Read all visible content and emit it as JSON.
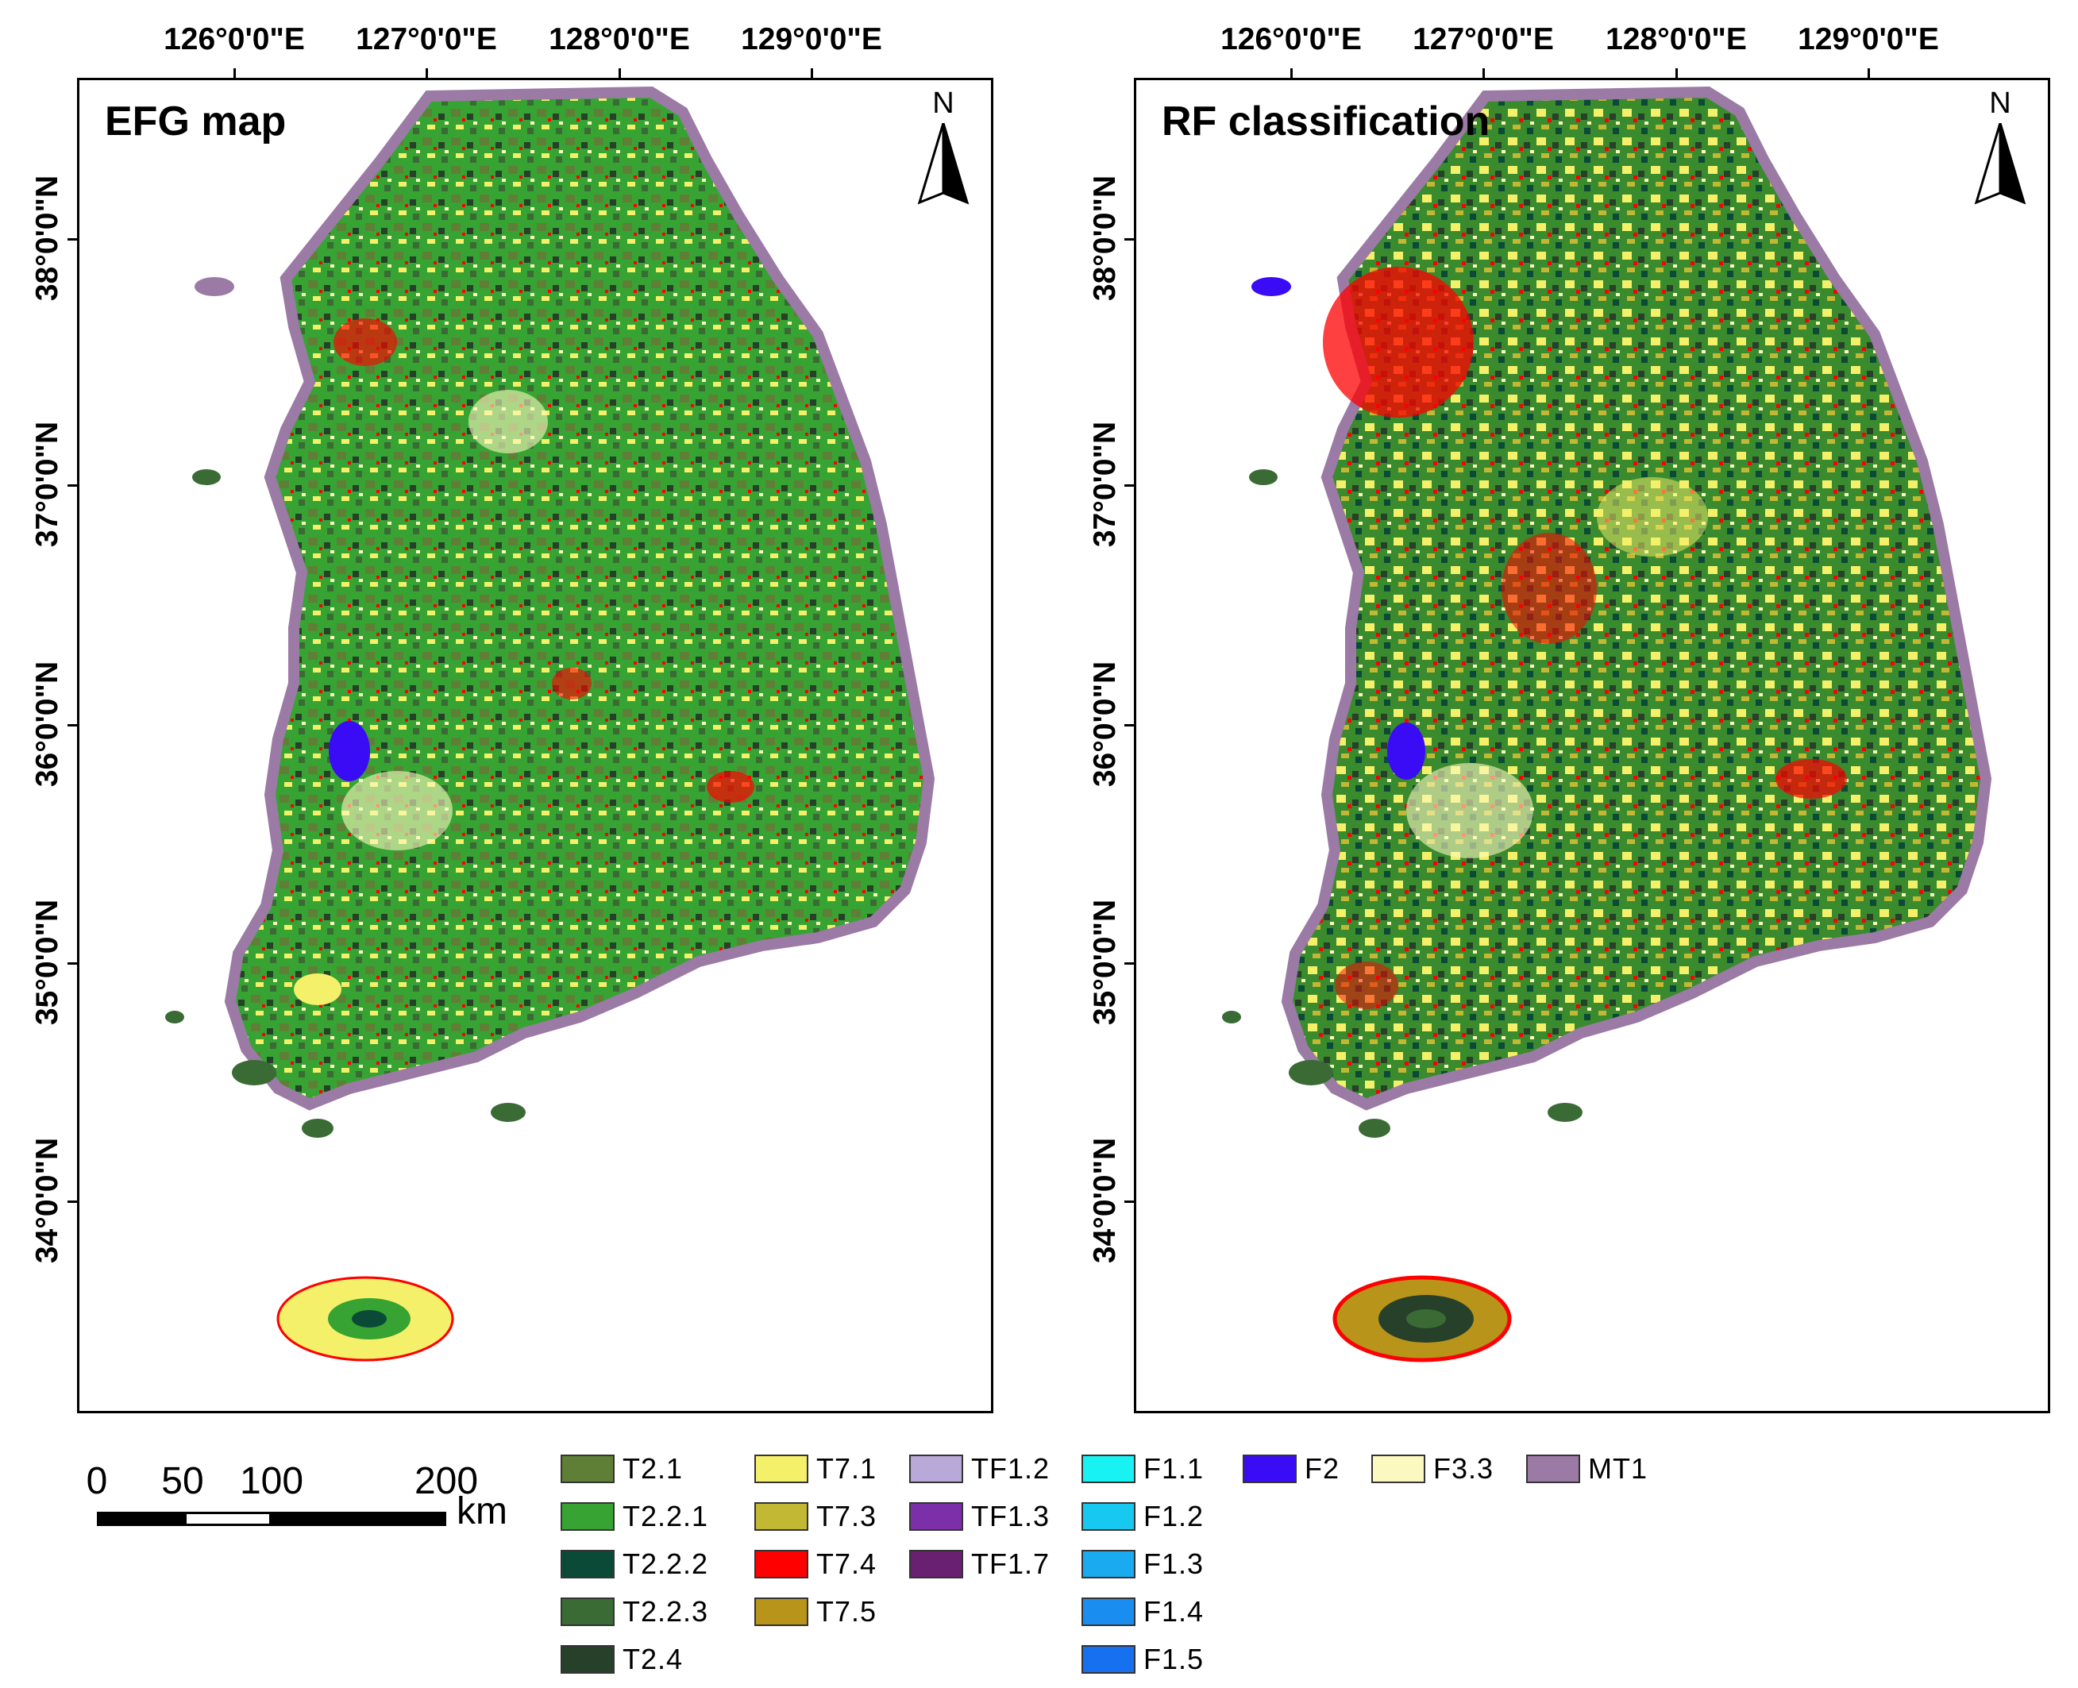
{
  "panels": [
    {
      "title": "EFG map"
    },
    {
      "title": "RF classification"
    }
  ],
  "north_label": "N",
  "x_ticks": [
    "126°0'0\"E",
    "127°0'0\"E",
    "128°0'0\"E",
    "129°0'0\"E"
  ],
  "y_ticks": [
    "38°0'0\"N",
    "37°0'0\"N",
    "36°0'0\"N",
    "35°0'0\"N",
    "34°0'0\"N"
  ],
  "scale_bar": {
    "labels": [
      "0",
      "50",
      "100",
      "200"
    ],
    "unit": "km"
  },
  "legend": [
    {
      "label": "T2.1",
      "color": "#5f7f36"
    },
    {
      "label": "T2.2.1",
      "color": "#37a333"
    },
    {
      "label": "T2.2.2",
      "color": "#0b4a36"
    },
    {
      "label": "T2.2.3",
      "color": "#3a6b34"
    },
    {
      "label": "T2.4",
      "color": "#26402a"
    },
    {
      "label": "T7.1",
      "color": "#f5f06a"
    },
    {
      "label": "T7.3",
      "color": "#c2b834"
    },
    {
      "label": "T7.4",
      "color": "#ff0000"
    },
    {
      "label": "T7.5",
      "color": "#b8941a"
    },
    {
      "label": "TF1.2",
      "color": "#b9a9d9"
    },
    {
      "label": "TF1.3",
      "color": "#7b2fa8"
    },
    {
      "label": "TF1.7",
      "color": "#6a2070"
    },
    {
      "label": "F1.1",
      "color": "#19f2f2"
    },
    {
      "label": "F1.2",
      "color": "#17c8f0"
    },
    {
      "label": "F1.3",
      "color": "#1aaaf0"
    },
    {
      "label": "F1.4",
      "color": "#1a8ef0"
    },
    {
      "label": "F1.5",
      "color": "#1670f0"
    },
    {
      "label": "F2",
      "color": "#3a0bf5"
    },
    {
      "label": "F3.3",
      "color": "#fbf9c0"
    },
    {
      "label": "MT1",
      "color": "#9b7aa5"
    }
  ]
}
